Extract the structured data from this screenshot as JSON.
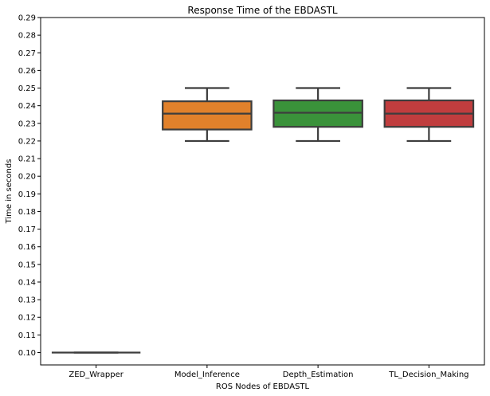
{
  "chart_data": {
    "type": "box",
    "title": "Response Time of the EBDASTL",
    "xlabel": "ROS Nodes of EBDASTL",
    "ylabel": "Time in seconds",
    "ylim": [
      0.093,
      0.29
    ],
    "yticks": [
      "0.10",
      "0.11",
      "0.12",
      "0.13",
      "0.14",
      "0.15",
      "0.16",
      "0.17",
      "0.18",
      "0.19",
      "0.20",
      "0.21",
      "0.22",
      "0.23",
      "0.24",
      "0.25",
      "0.26",
      "0.27",
      "0.28",
      "0.29"
    ],
    "grid": false,
    "categories": [
      "ZED_Wrapper",
      "Model_Inference",
      "Depth_Estimation",
      "TL_Decision_Making"
    ],
    "boxes": [
      {
        "category": "ZED_Wrapper",
        "whisker_low": 0.1,
        "q1": 0.1,
        "median": 0.1,
        "q3": 0.1,
        "whisker_high": 0.1,
        "color": "#3a75af"
      },
      {
        "category": "Model_Inference",
        "whisker_low": 0.22,
        "q1": 0.2265,
        "median": 0.2355,
        "q3": 0.2425,
        "whisker_high": 0.25,
        "color": "#e1812b"
      },
      {
        "category": "Depth_Estimation",
        "whisker_low": 0.22,
        "q1": 0.228,
        "median": 0.236,
        "q3": 0.243,
        "whisker_high": 0.25,
        "color": "#3a923a"
      },
      {
        "category": "TL_Decision_Making",
        "whisker_low": 0.22,
        "q1": 0.228,
        "median": 0.2355,
        "q3": 0.243,
        "whisker_high": 0.25,
        "color": "#c03d3e"
      }
    ],
    "edge_color": "#3d3d3d"
  }
}
